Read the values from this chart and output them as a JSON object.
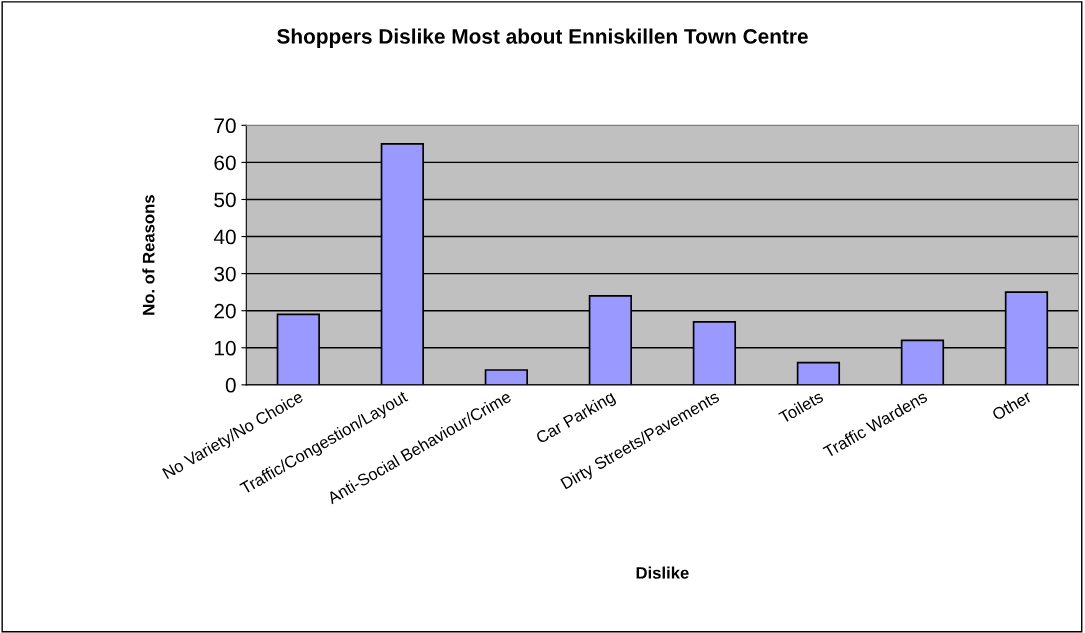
{
  "chart_data": {
    "type": "bar",
    "title": "Shoppers Dislike Most about Enniskillen Town Centre",
    "xlabel": "Dislike",
    "ylabel": "No. of Reasons",
    "categories": [
      "No Variety/No Choice",
      "Traffic/Congestion/Layout",
      "Anti-Social Behaviour/Crime",
      "Car Parking",
      "Dirty Streets/Pavements",
      "Toilets",
      "Traffic Wardens",
      "Other"
    ],
    "values": [
      19,
      65,
      4,
      24,
      17,
      6,
      12,
      25
    ],
    "color": "#9999ff",
    "ylim": [
      0,
      70
    ],
    "yticks": [
      0,
      10,
      20,
      30,
      40,
      50,
      60,
      70
    ],
    "grid": "y",
    "legend": false
  }
}
